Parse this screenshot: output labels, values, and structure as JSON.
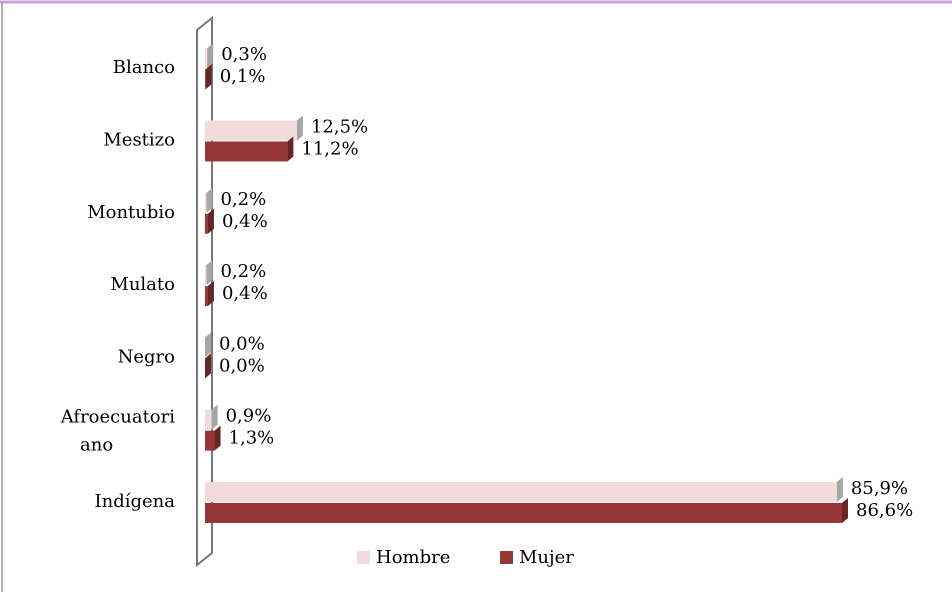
{
  "chart_data": {
    "type": "bar",
    "orientation": "horizontal",
    "categories": [
      "Blanco",
      "Mestizo",
      "Montubio",
      "Mulato",
      "Negro",
      "Afroecuatoriano",
      "Indígena"
    ],
    "series": [
      {
        "name": "Hombre",
        "color": "#f2dcdb",
        "values": [
          0.3,
          12.5,
          0.2,
          0.2,
          0.0,
          0.9,
          85.9
        ],
        "value_labels": [
          "0,3%",
          "12,5%",
          "0,2%",
          "0,2%",
          "0,0%",
          "0,9%",
          "85,9%"
        ]
      },
      {
        "name": "Mujer",
        "color": "#953735",
        "values": [
          0.1,
          11.2,
          0.4,
          0.4,
          0.0,
          1.3,
          86.6
        ],
        "value_labels": [
          "0,1%",
          "11,2%",
          "0,4%",
          "0,4%",
          "0,0%",
          "1,3%",
          "86,6%"
        ]
      }
    ],
    "legend": "bottom"
  }
}
